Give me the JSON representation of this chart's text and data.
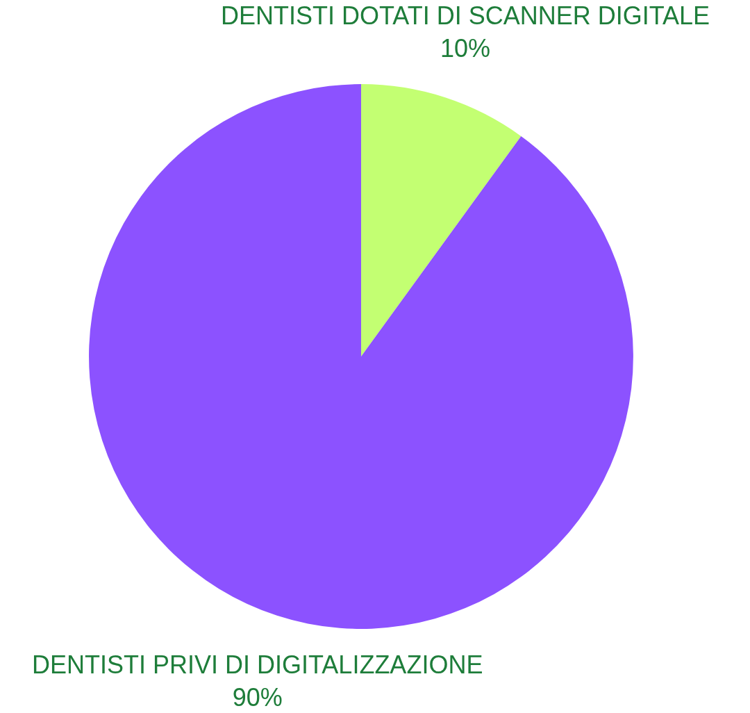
{
  "chart_data": {
    "type": "pie",
    "categories": [
      "DENTISTI DOTATI DI SCANNER DIGITALE",
      "DENTISTI PRIVI DI DIGITALIZZAZIONE"
    ],
    "values": [
      10,
      90
    ],
    "colors": [
      "#c3ff72",
      "#8c52ff"
    ],
    "value_labels": [
      "10%",
      "90%"
    ],
    "legend": false
  }
}
